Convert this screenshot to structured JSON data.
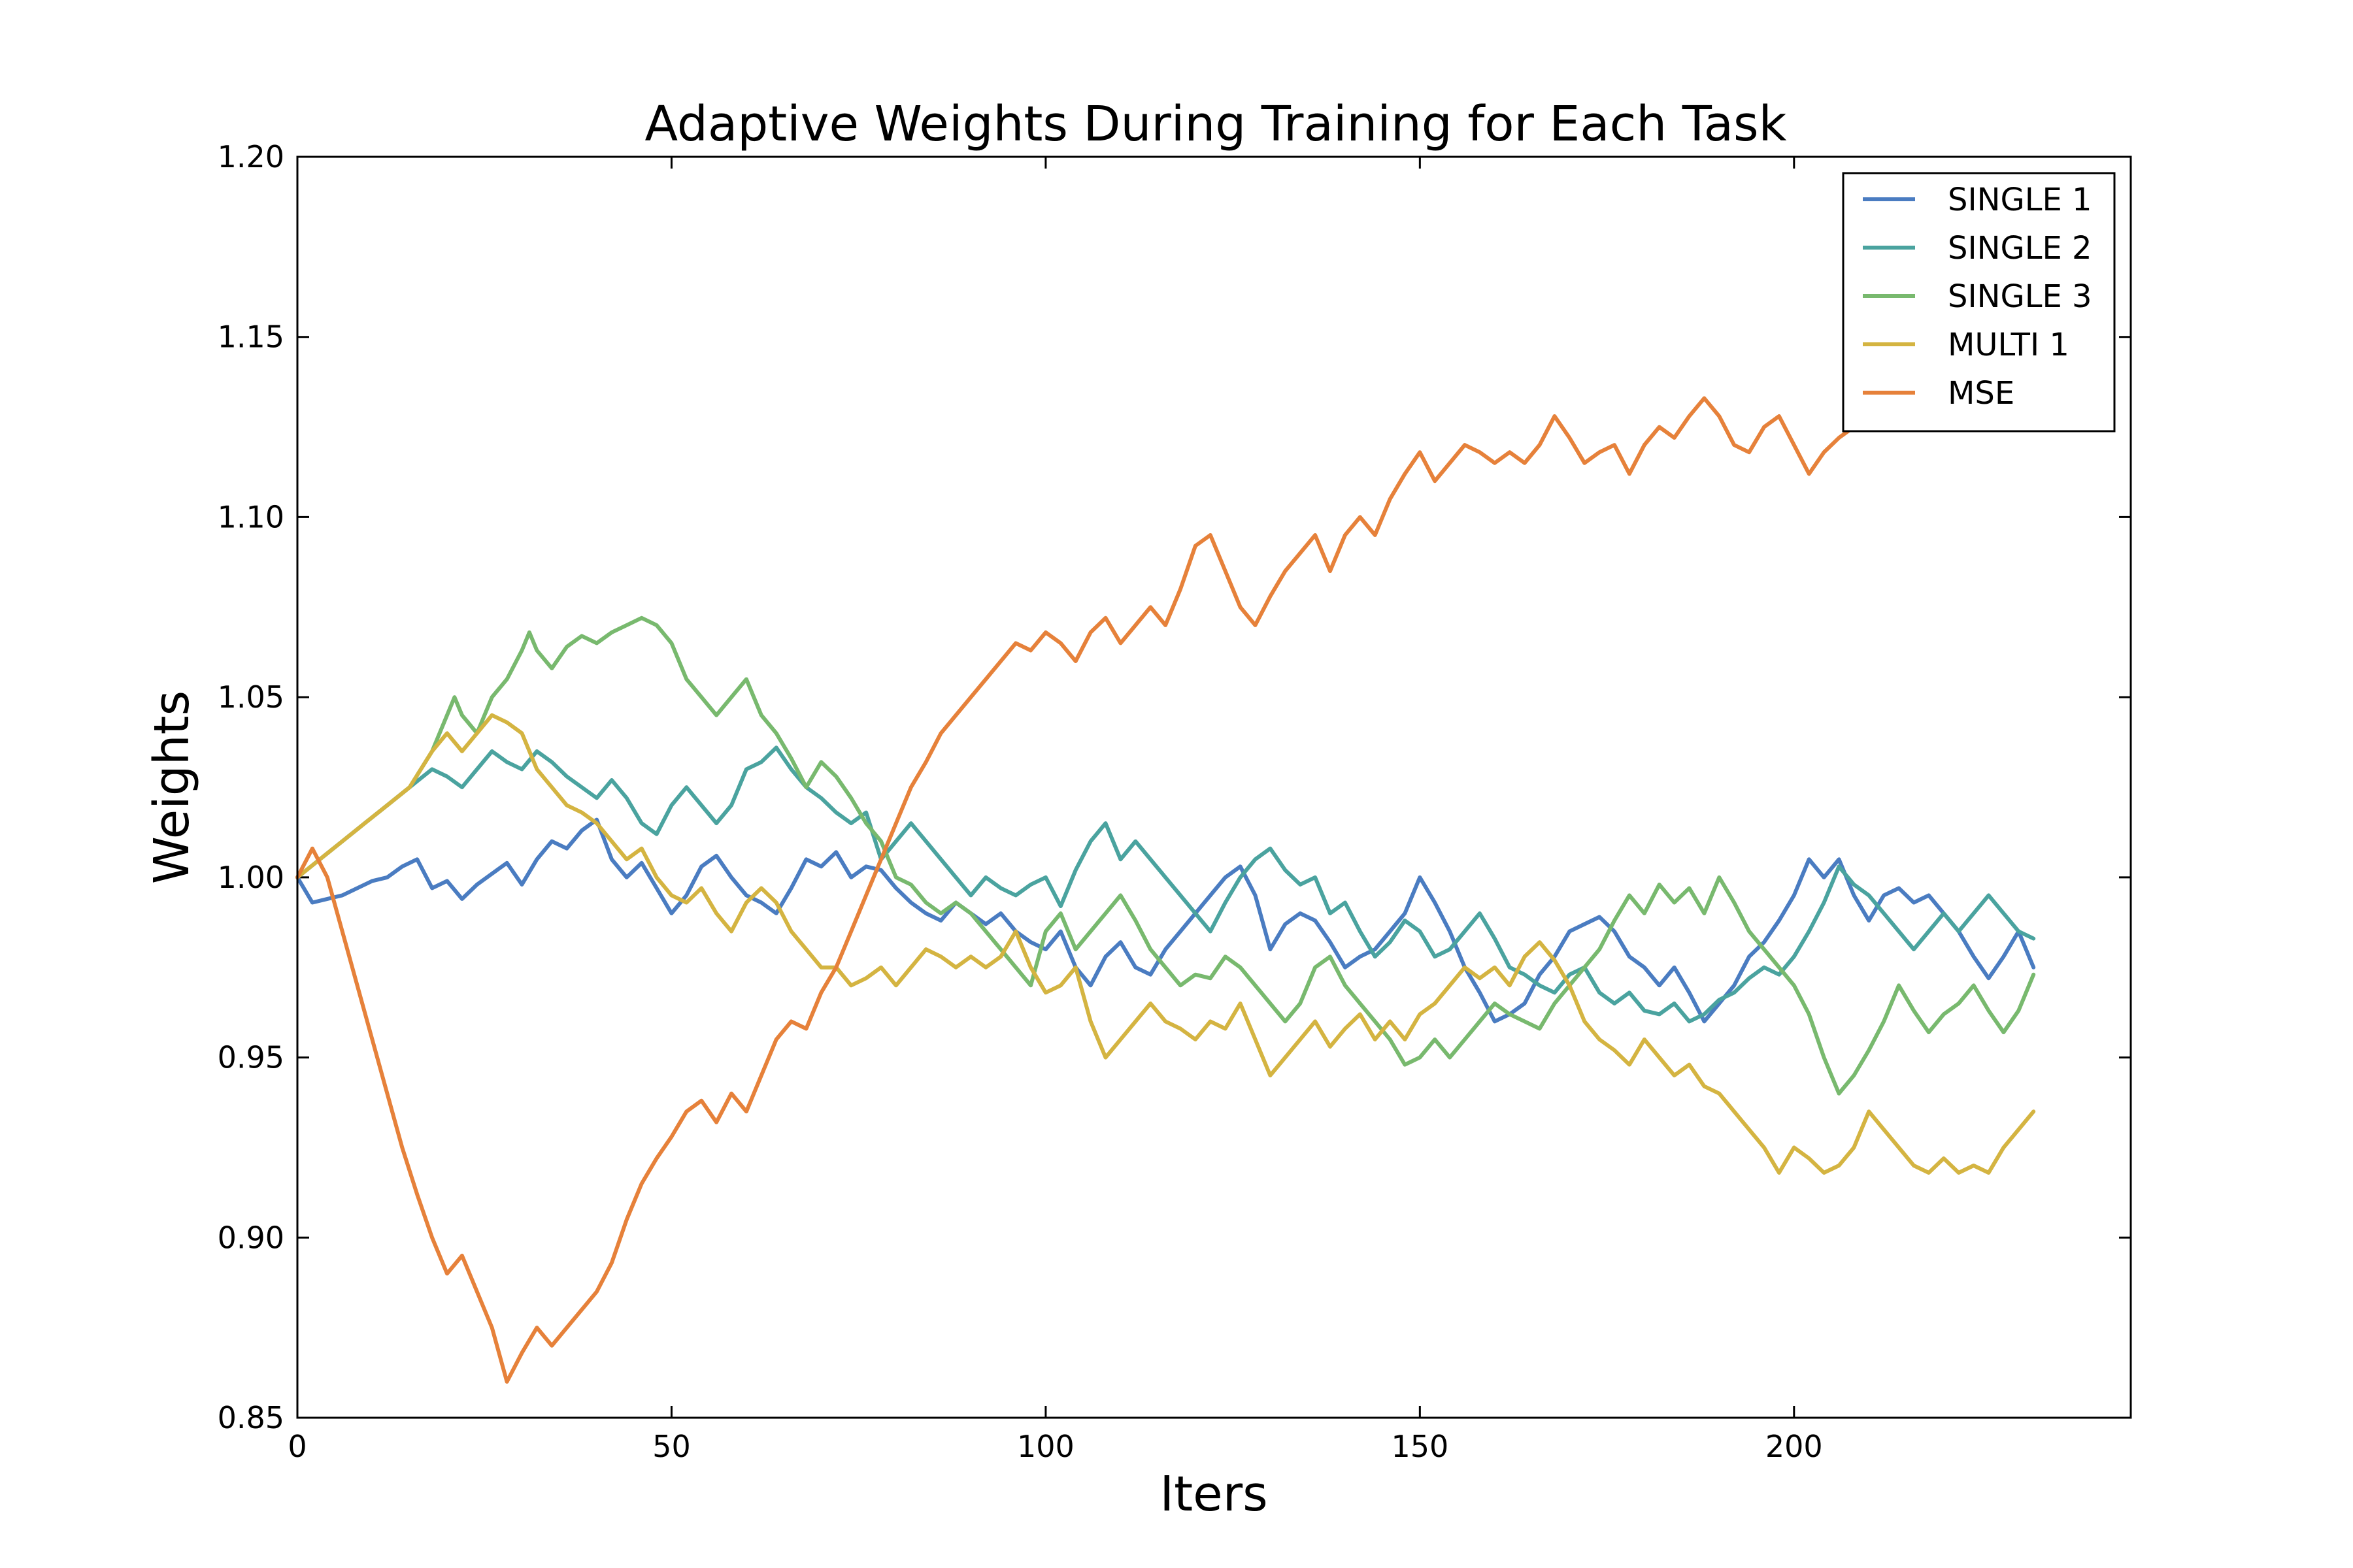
{
  "chart_data": {
    "type": "line",
    "title": "Adaptive Weights During Training for Each Task",
    "xlabel": "Iters",
    "ylabel": "Weights",
    "xlim": [
      0,
      245
    ],
    "ylim": [
      0.85,
      1.2
    ],
    "xticks": [
      0,
      50,
      100,
      150,
      200
    ],
    "xtick_labels": [
      "0",
      "50",
      "100",
      "150",
      "200"
    ],
    "yticks": [
      0.85,
      0.9,
      0.95,
      1.0,
      1.05,
      1.1,
      1.15,
      1.2
    ],
    "ytick_labels": [
      "0.85",
      "0.90",
      "0.95",
      "1.00",
      "1.05",
      "1.10",
      "1.15",
      "1.20"
    ],
    "grid": false,
    "legend_position": "top-right",
    "series": [
      {
        "name": "SINGLE 1",
        "color": "#4a7cc1",
        "x": [
          0,
          2,
          4,
          6,
          8,
          10,
          12,
          14,
          16,
          18,
          20,
          22,
          24,
          26,
          28,
          30,
          32,
          34,
          36,
          38,
          40,
          42,
          44,
          46,
          48,
          50,
          52,
          54,
          56,
          58,
          60,
          62,
          64,
          66,
          68,
          70,
          72,
          74,
          76,
          78,
          80,
          82,
          84,
          86,
          88,
          90,
          92,
          94,
          96,
          98,
          100,
          102,
          104,
          106,
          108,
          110,
          112,
          114,
          116,
          118,
          120,
          122,
          124,
          126,
          128,
          130,
          132,
          134,
          136,
          138,
          140,
          142,
          144,
          146,
          148,
          150,
          152,
          154,
          156,
          158,
          160,
          162,
          164,
          166,
          168,
          170,
          172,
          174,
          176,
          178,
          180,
          182,
          184,
          186,
          188,
          190,
          192,
          194,
          196,
          198,
          200,
          202,
          204,
          206,
          208,
          210,
          212,
          214,
          216,
          218,
          220,
          222,
          224,
          226,
          228,
          230,
          232
        ],
        "values": [
          1.0,
          0.993,
          0.994,
          0.995,
          0.997,
          0.999,
          1.0,
          1.003,
          1.005,
          0.997,
          0.999,
          0.994,
          0.998,
          1.001,
          1.004,
          0.998,
          1.005,
          1.01,
          1.008,
          1.013,
          1.016,
          1.005,
          1.0,
          1.004,
          0.997,
          0.99,
          0.995,
          1.003,
          1.006,
          1.0,
          0.995,
          0.993,
          0.99,
          0.997,
          1.005,
          1.003,
          1.007,
          1.0,
          1.003,
          1.002,
          0.997,
          0.993,
          0.99,
          0.988,
          0.993,
          0.99,
          0.987,
          0.99,
          0.985,
          0.982,
          0.98,
          0.985,
          0.975,
          0.97,
          0.978,
          0.982,
          0.975,
          0.973,
          0.98,
          0.985,
          0.99,
          0.995,
          1.0,
          1.003,
          0.995,
          0.98,
          0.987,
          0.99,
          0.988,
          0.982,
          0.975,
          0.978,
          0.98,
          0.985,
          0.99,
          1.0,
          0.993,
          0.985,
          0.975,
          0.968,
          0.96,
          0.962,
          0.965,
          0.973,
          0.978,
          0.985,
          0.987,
          0.989,
          0.985,
          0.978,
          0.975,
          0.97,
          0.975,
          0.968,
          0.96,
          0.965,
          0.97,
          0.978,
          0.982,
          0.988,
          0.995,
          1.005,
          1.0,
          1.005,
          0.995,
          0.988,
          0.995,
          0.997,
          0.993,
          0.995,
          0.99,
          0.985,
          0.978,
          0.972,
          0.978,
          0.985,
          0.975
        ]
      },
      {
        "name": "SINGLE 2",
        "color": "#4aa39f",
        "x": [
          0,
          3,
          6,
          9,
          12,
          15,
          18,
          20,
          22,
          24,
          26,
          28,
          30,
          32,
          34,
          36,
          38,
          40,
          42,
          44,
          46,
          48,
          50,
          52,
          54,
          56,
          58,
          60,
          62,
          64,
          66,
          68,
          70,
          72,
          74,
          76,
          78,
          80,
          82,
          84,
          86,
          88,
          90,
          92,
          94,
          96,
          98,
          100,
          102,
          104,
          106,
          108,
          110,
          112,
          114,
          116,
          118,
          120,
          122,
          124,
          126,
          128,
          130,
          132,
          134,
          136,
          138,
          140,
          142,
          144,
          146,
          148,
          150,
          152,
          154,
          156,
          158,
          160,
          162,
          164,
          166,
          168,
          170,
          172,
          174,
          176,
          178,
          180,
          182,
          184,
          186,
          188,
          190,
          192,
          194,
          196,
          198,
          200,
          202,
          204,
          206,
          208,
          210,
          212,
          214,
          216,
          218,
          220,
          222,
          224,
          226,
          228,
          230,
          232
        ],
        "values": [
          1.0,
          1.005,
          1.01,
          1.015,
          1.02,
          1.025,
          1.03,
          1.028,
          1.025,
          1.03,
          1.035,
          1.032,
          1.03,
          1.035,
          1.032,
          1.028,
          1.025,
          1.022,
          1.027,
          1.022,
          1.015,
          1.012,
          1.02,
          1.025,
          1.02,
          1.015,
          1.02,
          1.03,
          1.032,
          1.036,
          1.03,
          1.025,
          1.022,
          1.018,
          1.015,
          1.018,
          1.005,
          1.01,
          1.015,
          1.01,
          1.005,
          1.0,
          0.995,
          1.0,
          0.997,
          0.995,
          0.998,
          1.0,
          0.992,
          1.002,
          1.01,
          1.015,
          1.005,
          1.01,
          1.005,
          1.0,
          0.995,
          0.99,
          0.985,
          0.993,
          1.0,
          1.005,
          1.008,
          1.002,
          0.998,
          1.0,
          0.99,
          0.993,
          0.985,
          0.978,
          0.982,
          0.988,
          0.985,
          0.978,
          0.98,
          0.985,
          0.99,
          0.983,
          0.975,
          0.973,
          0.97,
          0.968,
          0.973,
          0.975,
          0.968,
          0.965,
          0.968,
          0.963,
          0.962,
          0.965,
          0.96,
          0.962,
          0.966,
          0.968,
          0.972,
          0.975,
          0.973,
          0.978,
          0.985,
          0.993,
          1.003,
          0.998,
          0.995,
          0.99,
          0.985,
          0.98,
          0.985,
          0.99,
          0.985,
          0.99,
          0.995,
          0.99,
          0.985,
          0.983
        ]
      },
      {
        "name": "SINGLE 3",
        "color": "#78b96e",
        "x": [
          0,
          3,
          6,
          9,
          12,
          15,
          18,
          20,
          21,
          22,
          24,
          26,
          28,
          30,
          31,
          32,
          34,
          36,
          38,
          40,
          42,
          44,
          46,
          48,
          50,
          52,
          54,
          56,
          58,
          60,
          62,
          64,
          66,
          68,
          70,
          72,
          74,
          76,
          78,
          80,
          82,
          84,
          86,
          88,
          90,
          92,
          94,
          96,
          98,
          100,
          102,
          104,
          106,
          108,
          110,
          112,
          114,
          116,
          118,
          120,
          122,
          124,
          126,
          128,
          130,
          132,
          134,
          136,
          138,
          140,
          142,
          144,
          146,
          148,
          150,
          152,
          154,
          156,
          158,
          160,
          162,
          164,
          166,
          168,
          170,
          172,
          174,
          176,
          178,
          180,
          182,
          184,
          186,
          188,
          190,
          192,
          194,
          196,
          198,
          200,
          202,
          204,
          206,
          208,
          210,
          212,
          214,
          216,
          218,
          220,
          222,
          224,
          226,
          228,
          230,
          232
        ],
        "values": [
          1.0,
          1.005,
          1.01,
          1.015,
          1.02,
          1.025,
          1.035,
          1.045,
          1.05,
          1.045,
          1.04,
          1.05,
          1.055,
          1.063,
          1.068,
          1.063,
          1.058,
          1.064,
          1.067,
          1.065,
          1.068,
          1.07,
          1.072,
          1.07,
          1.065,
          1.055,
          1.05,
          1.045,
          1.05,
          1.055,
          1.045,
          1.04,
          1.033,
          1.025,
          1.032,
          1.028,
          1.022,
          1.015,
          1.01,
          1.0,
          0.998,
          0.993,
          0.99,
          0.993,
          0.99,
          0.985,
          0.98,
          0.975,
          0.97,
          0.985,
          0.99,
          0.98,
          0.985,
          0.99,
          0.995,
          0.988,
          0.98,
          0.975,
          0.97,
          0.973,
          0.972,
          0.978,
          0.975,
          0.97,
          0.965,
          0.96,
          0.965,
          0.975,
          0.978,
          0.97,
          0.965,
          0.96,
          0.955,
          0.948,
          0.95,
          0.955,
          0.95,
          0.955,
          0.96,
          0.965,
          0.962,
          0.96,
          0.958,
          0.965,
          0.97,
          0.975,
          0.98,
          0.988,
          0.995,
          0.99,
          0.998,
          0.993,
          0.997,
          0.99,
          1.0,
          0.993,
          0.985,
          0.98,
          0.975,
          0.97,
          0.962,
          0.95,
          0.94,
          0.945,
          0.952,
          0.96,
          0.97,
          0.963,
          0.957,
          0.962,
          0.965,
          0.97,
          0.963,
          0.957,
          0.963,
          0.973
        ]
      },
      {
        "name": "MULTI 1",
        "color": "#d4b441",
        "x": [
          0,
          3,
          6,
          9,
          12,
          15,
          18,
          20,
          22,
          24,
          26,
          28,
          30,
          32,
          34,
          36,
          38,
          40,
          42,
          44,
          46,
          48,
          50,
          52,
          54,
          56,
          58,
          60,
          62,
          64,
          66,
          68,
          70,
          72,
          74,
          76,
          78,
          80,
          82,
          84,
          86,
          88,
          90,
          92,
          94,
          96,
          98,
          100,
          102,
          104,
          106,
          108,
          110,
          112,
          114,
          116,
          118,
          120,
          122,
          124,
          126,
          128,
          130,
          132,
          134,
          136,
          138,
          140,
          142,
          144,
          146,
          148,
          150,
          152,
          154,
          156,
          158,
          160,
          162,
          164,
          166,
          168,
          170,
          172,
          174,
          176,
          178,
          180,
          182,
          184,
          186,
          188,
          190,
          192,
          194,
          196,
          198,
          200,
          202,
          204,
          206,
          208,
          210,
          212,
          214,
          216,
          218,
          220,
          222,
          224,
          226,
          228,
          230,
          232
        ],
        "values": [
          1.0,
          1.005,
          1.01,
          1.015,
          1.02,
          1.025,
          1.035,
          1.04,
          1.035,
          1.04,
          1.045,
          1.043,
          1.04,
          1.03,
          1.025,
          1.02,
          1.018,
          1.015,
          1.01,
          1.005,
          1.008,
          1.0,
          0.995,
          0.993,
          0.997,
          0.99,
          0.985,
          0.993,
          0.997,
          0.993,
          0.985,
          0.98,
          0.975,
          0.975,
          0.97,
          0.972,
          0.975,
          0.97,
          0.975,
          0.98,
          0.978,
          0.975,
          0.978,
          0.975,
          0.978,
          0.985,
          0.975,
          0.968,
          0.97,
          0.975,
          0.96,
          0.95,
          0.955,
          0.96,
          0.965,
          0.96,
          0.958,
          0.955,
          0.96,
          0.958,
          0.965,
          0.955,
          0.945,
          0.95,
          0.955,
          0.96,
          0.953,
          0.958,
          0.962,
          0.955,
          0.96,
          0.955,
          0.962,
          0.965,
          0.97,
          0.975,
          0.972,
          0.975,
          0.97,
          0.978,
          0.982,
          0.977,
          0.97,
          0.96,
          0.955,
          0.952,
          0.948,
          0.955,
          0.95,
          0.945,
          0.948,
          0.942,
          0.94,
          0.935,
          0.93,
          0.925,
          0.918,
          0.925,
          0.922,
          0.918,
          0.92,
          0.925,
          0.935,
          0.93,
          0.925,
          0.92,
          0.918,
          0.922,
          0.918,
          0.92,
          0.918,
          0.925,
          0.93,
          0.935
        ]
      },
      {
        "name": "MSE",
        "color": "#e6813a",
        "x": [
          0,
          2,
          4,
          6,
          8,
          10,
          12,
          14,
          16,
          18,
          20,
          22,
          24,
          26,
          28,
          30,
          32,
          34,
          36,
          38,
          40,
          42,
          44,
          46,
          48,
          50,
          52,
          54,
          56,
          58,
          60,
          62,
          64,
          66,
          68,
          70,
          72,
          74,
          76,
          78,
          80,
          82,
          84,
          86,
          88,
          90,
          92,
          94,
          96,
          98,
          100,
          102,
          104,
          106,
          108,
          110,
          112,
          114,
          116,
          118,
          120,
          122,
          124,
          126,
          128,
          130,
          132,
          134,
          136,
          138,
          140,
          142,
          144,
          146,
          148,
          150,
          152,
          154,
          156,
          158,
          160,
          162,
          164,
          166,
          168,
          170,
          172,
          174,
          176,
          178,
          180,
          182,
          184,
          186,
          188,
          190,
          192,
          194,
          196,
          198,
          200,
          202,
          204,
          206,
          208,
          210,
          212
        ],
        "values": [
          1.0,
          1.008,
          1.0,
          0.985,
          0.97,
          0.955,
          0.94,
          0.925,
          0.912,
          0.9,
          0.89,
          0.895,
          0.885,
          0.875,
          0.86,
          0.868,
          0.875,
          0.87,
          0.875,
          0.88,
          0.885,
          0.893,
          0.905,
          0.915,
          0.922,
          0.928,
          0.935,
          0.938,
          0.932,
          0.94,
          0.935,
          0.945,
          0.955,
          0.96,
          0.958,
          0.968,
          0.975,
          0.985,
          0.995,
          1.005,
          1.015,
          1.025,
          1.032,
          1.04,
          1.045,
          1.05,
          1.055,
          1.06,
          1.065,
          1.063,
          1.068,
          1.065,
          1.06,
          1.068,
          1.072,
          1.065,
          1.07,
          1.075,
          1.07,
          1.08,
          1.092,
          1.095,
          1.085,
          1.075,
          1.07,
          1.078,
          1.085,
          1.09,
          1.095,
          1.085,
          1.095,
          1.1,
          1.095,
          1.105,
          1.112,
          1.118,
          1.11,
          1.115,
          1.12,
          1.118,
          1.115,
          1.118,
          1.115,
          1.12,
          1.128,
          1.122,
          1.115,
          1.118,
          1.12,
          1.112,
          1.12,
          1.125,
          1.122,
          1.128,
          1.133,
          1.128,
          1.12,
          1.118,
          1.125,
          1.128,
          1.12,
          1.112,
          1.118,
          1.122,
          1.125,
          1.13,
          1.13
        ]
      }
    ]
  }
}
